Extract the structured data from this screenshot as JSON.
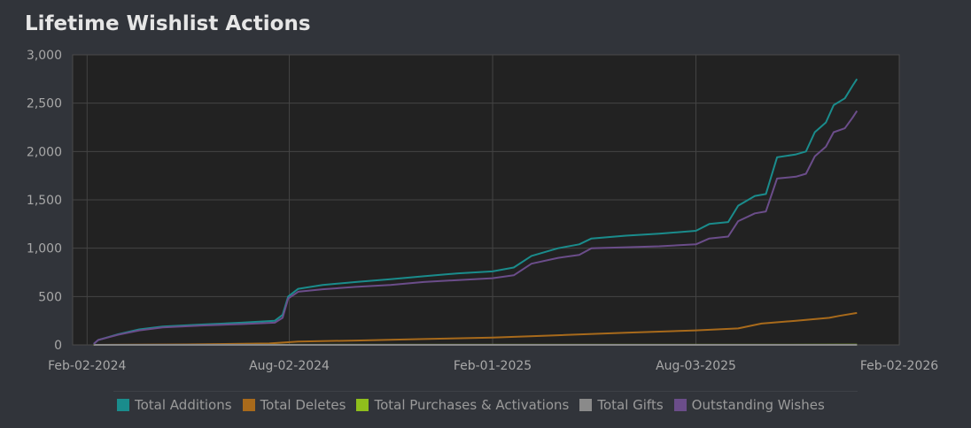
{
  "title": "Lifetime Wishlist Actions",
  "chart_data": {
    "type": "line",
    "xlim": [
      "2024-01-20",
      "2026-02-02"
    ],
    "ylim": [
      0,
      3000
    ],
    "y_ticks": [
      0,
      500,
      1000,
      1500,
      2000,
      2500,
      3000
    ],
    "y_tick_labels": [
      "0",
      "500",
      "1,000",
      "1,500",
      "2,000",
      "2,500",
      "3,000"
    ],
    "x_ticks": [
      "2024-02-02",
      "2024-08-02",
      "2025-02-01",
      "2025-08-03",
      "2026-02-02"
    ],
    "x_tick_labels": [
      "Feb-02-2024",
      "Aug-02-2024",
      "Feb-01-2025",
      "Aug-03-2025",
      "Feb-02-2026"
    ],
    "grid": true,
    "legend_position": "bottom",
    "series": [
      {
        "name": "Total Additions",
        "color": "#1a8c8c",
        "points": [
          [
            "2024-02-08",
            10
          ],
          [
            "2024-02-12",
            50
          ],
          [
            "2024-03-01",
            110
          ],
          [
            "2024-03-20",
            160
          ],
          [
            "2024-04-10",
            190
          ],
          [
            "2024-05-15",
            210
          ],
          [
            "2024-06-20",
            230
          ],
          [
            "2024-07-20",
            250
          ],
          [
            "2024-07-27",
            310
          ],
          [
            "2024-08-01",
            500
          ],
          [
            "2024-08-10",
            580
          ],
          [
            "2024-09-01",
            620
          ],
          [
            "2024-10-01",
            650
          ],
          [
            "2024-11-01",
            680
          ],
          [
            "2024-12-01",
            710
          ],
          [
            "2025-01-01",
            740
          ],
          [
            "2025-02-01",
            760
          ],
          [
            "2025-02-20",
            800
          ],
          [
            "2025-03-08",
            920
          ],
          [
            "2025-04-01",
            1000
          ],
          [
            "2025-04-20",
            1040
          ],
          [
            "2025-05-01",
            1100
          ],
          [
            "2025-06-01",
            1130
          ],
          [
            "2025-07-01",
            1150
          ],
          [
            "2025-08-03",
            1180
          ],
          [
            "2025-08-15",
            1250
          ],
          [
            "2025-09-01",
            1270
          ],
          [
            "2025-09-10",
            1440
          ],
          [
            "2025-09-25",
            1540
          ],
          [
            "2025-10-05",
            1560
          ],
          [
            "2025-10-15",
            1940
          ],
          [
            "2025-11-01",
            1970
          ],
          [
            "2025-11-10",
            2000
          ],
          [
            "2025-11-18",
            2200
          ],
          [
            "2025-11-28",
            2300
          ],
          [
            "2025-12-05",
            2480
          ],
          [
            "2025-12-15",
            2550
          ],
          [
            "2025-12-22",
            2680
          ],
          [
            "2025-12-26",
            2750
          ]
        ]
      },
      {
        "name": "Total Deletes",
        "color": "#a86a1b",
        "points": [
          [
            "2024-02-08",
            0
          ],
          [
            "2024-05-01",
            5
          ],
          [
            "2024-07-15",
            15
          ],
          [
            "2024-08-10",
            35
          ],
          [
            "2024-10-01",
            45
          ],
          [
            "2024-12-01",
            60
          ],
          [
            "2025-02-01",
            75
          ],
          [
            "2025-04-01",
            100
          ],
          [
            "2025-06-01",
            125
          ],
          [
            "2025-08-03",
            150
          ],
          [
            "2025-09-10",
            170
          ],
          [
            "2025-10-01",
            220
          ],
          [
            "2025-11-01",
            250
          ],
          [
            "2025-12-01",
            280
          ],
          [
            "2025-12-10",
            300
          ],
          [
            "2025-12-26",
            330
          ]
        ]
      },
      {
        "name": "Total Purchases & Activations",
        "color": "#8fbf1c",
        "points": [
          [
            "2024-02-08",
            0
          ],
          [
            "2025-12-26",
            2
          ]
        ]
      },
      {
        "name": "Total Gifts",
        "color": "#8a8a8a",
        "points": [
          [
            "2024-02-08",
            0
          ],
          [
            "2025-12-26",
            0
          ]
        ]
      },
      {
        "name": "Outstanding Wishes",
        "color": "#6b4d8a",
        "points": [
          [
            "2024-02-08",
            10
          ],
          [
            "2024-02-12",
            50
          ],
          [
            "2024-03-01",
            105
          ],
          [
            "2024-03-20",
            150
          ],
          [
            "2024-04-10",
            180
          ],
          [
            "2024-05-15",
            200
          ],
          [
            "2024-06-20",
            215
          ],
          [
            "2024-07-20",
            230
          ],
          [
            "2024-07-27",
            280
          ],
          [
            "2024-08-01",
            480
          ],
          [
            "2024-08-10",
            550
          ],
          [
            "2024-09-01",
            575
          ],
          [
            "2024-10-01",
            600
          ],
          [
            "2024-11-01",
            620
          ],
          [
            "2024-12-01",
            650
          ],
          [
            "2025-01-01",
            670
          ],
          [
            "2025-02-01",
            690
          ],
          [
            "2025-02-20",
            720
          ],
          [
            "2025-03-08",
            840
          ],
          [
            "2025-04-01",
            900
          ],
          [
            "2025-04-20",
            930
          ],
          [
            "2025-05-01",
            1000
          ],
          [
            "2025-06-01",
            1010
          ],
          [
            "2025-07-01",
            1020
          ],
          [
            "2025-08-03",
            1040
          ],
          [
            "2025-08-15",
            1100
          ],
          [
            "2025-09-01",
            1120
          ],
          [
            "2025-09-10",
            1280
          ],
          [
            "2025-09-25",
            1360
          ],
          [
            "2025-10-05",
            1380
          ],
          [
            "2025-10-15",
            1720
          ],
          [
            "2025-11-01",
            1740
          ],
          [
            "2025-11-10",
            1770
          ],
          [
            "2025-11-18",
            1950
          ],
          [
            "2025-11-28",
            2050
          ],
          [
            "2025-12-05",
            2200
          ],
          [
            "2025-12-15",
            2240
          ],
          [
            "2025-12-22",
            2350
          ],
          [
            "2025-12-26",
            2420
          ]
        ]
      }
    ]
  }
}
